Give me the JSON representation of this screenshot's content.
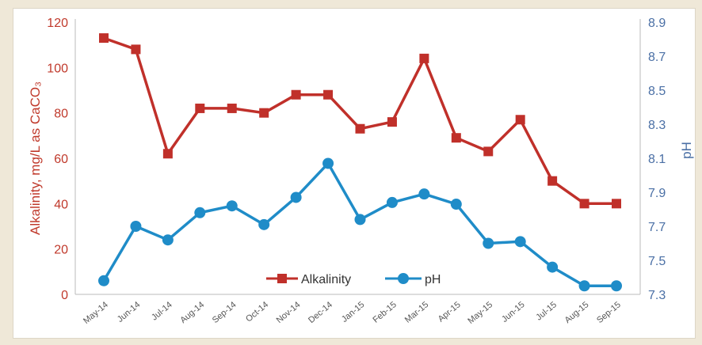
{
  "chart_data": {
    "type": "line",
    "title": "",
    "x": [
      "May-14",
      "Jun-14",
      "Jul-14",
      "Aug-14",
      "Sep-14",
      "Oct-14",
      "Nov-14",
      "Dec-14",
      "Jan-15",
      "Feb-15",
      "Mar-15",
      "Apr-15",
      "May-15",
      "Jun-15",
      "Jul-15",
      "Aug-15",
      "Sep-15"
    ],
    "y_left": {
      "label": "Alkalinity, mg/L as CaCO₃",
      "ylim": [
        0,
        120
      ],
      "ticks": [
        "0",
        "20",
        "40",
        "60",
        "80",
        "100",
        "120"
      ]
    },
    "y_right": {
      "label": "pH",
      "ylim": [
        7.3,
        8.9
      ],
      "ticks": [
        "7.3",
        "7.5",
        "7.7",
        "7.9",
        "8.1",
        "8.3",
        "8.5",
        "8.7",
        "8.9"
      ]
    },
    "series": [
      {
        "name": "Alkalinity",
        "axis": "left",
        "color": "#c0302a",
        "marker": "square",
        "values": [
          113,
          108,
          62,
          82,
          82,
          80,
          88,
          88,
          73,
          76,
          104,
          69,
          63,
          77,
          50,
          40,
          40
        ]
      },
      {
        "name": "pH",
        "axis": "right",
        "color": "#1f8cc8",
        "marker": "circle",
        "values": [
          7.38,
          7.7,
          7.62,
          7.78,
          7.82,
          7.71,
          7.87,
          8.07,
          7.74,
          7.84,
          7.89,
          7.83,
          7.6,
          7.61,
          7.46,
          7.35,
          7.35
        ]
      }
    ],
    "legend": "bottom-center",
    "grid": false
  }
}
